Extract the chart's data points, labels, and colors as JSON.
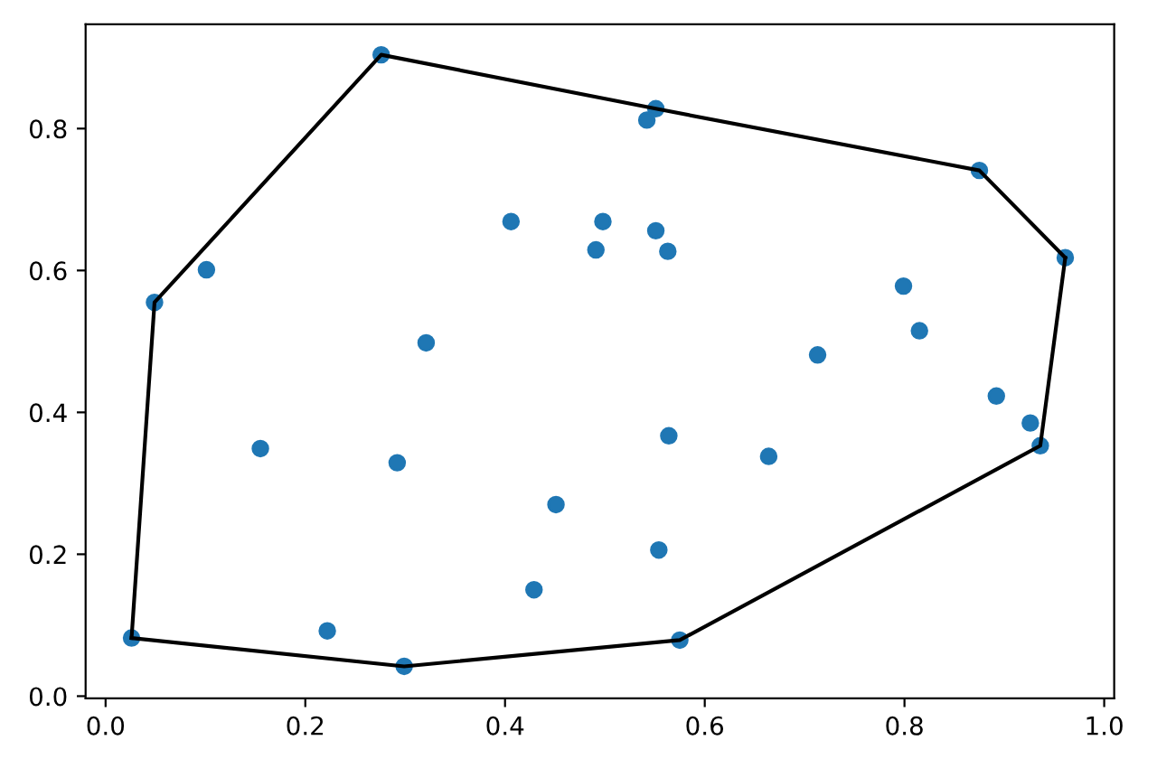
{
  "chart_data": {
    "type": "scatter",
    "xlim": [
      -0.02,
      1.01
    ],
    "ylim": [
      -0.003,
      0.947
    ],
    "xticks": [
      {
        "value": 0,
        "label": "0.0"
      },
      0.2,
      0.4,
      0.6,
      0.8,
      {
        "value": 1,
        "label": "1.0"
      }
    ],
    "yticks": [
      {
        "value": 0,
        "label": "0.0"
      },
      0.2,
      0.4,
      0.6,
      0.8
    ],
    "grid": false,
    "legend": false,
    "series": [
      {
        "color": "#1f77b4",
        "marker": "circle",
        "x": [
          0.276,
          0.049,
          0.101,
          0.026,
          0.222,
          0.299,
          0.155,
          0.292,
          0.321,
          0.406,
          0.498,
          0.491,
          0.451,
          0.429,
          0.551,
          0.542,
          0.551,
          0.563,
          0.875,
          0.961,
          0.799,
          0.815,
          0.713,
          0.892,
          0.926,
          0.936,
          0.564,
          0.664,
          0.554,
          0.575
        ],
        "values": [
          0.904,
          0.555,
          0.601,
          0.082,
          0.092,
          0.042,
          0.349,
          0.329,
          0.498,
          0.669,
          0.669,
          0.629,
          0.27,
          0.15,
          0.828,
          0.812,
          0.656,
          0.627,
          0.741,
          0.618,
          0.578,
          0.515,
          0.481,
          0.423,
          0.385,
          0.353,
          0.367,
          0.338,
          0.206,
          0.079
        ]
      },
      {
        "type": "line",
        "color": "#000000",
        "marker": "none",
        "line_style": "solid",
        "x": [
          0.026,
          0.299,
          0.575,
          0.936,
          0.961
        ],
        "values": [
          0.082,
          0.042,
          0.079,
          0.353,
          0.618
        ]
      },
      {
        "type": "line",
        "color": "#000000",
        "marker": "none",
        "line_style": "solid",
        "x": [
          0.026,
          0.049,
          0.276,
          0.551,
          0.875,
          0.961
        ],
        "values": [
          0.082,
          0.555,
          0.904,
          0.828,
          0.741,
          0.618
        ]
      }
    ]
  }
}
